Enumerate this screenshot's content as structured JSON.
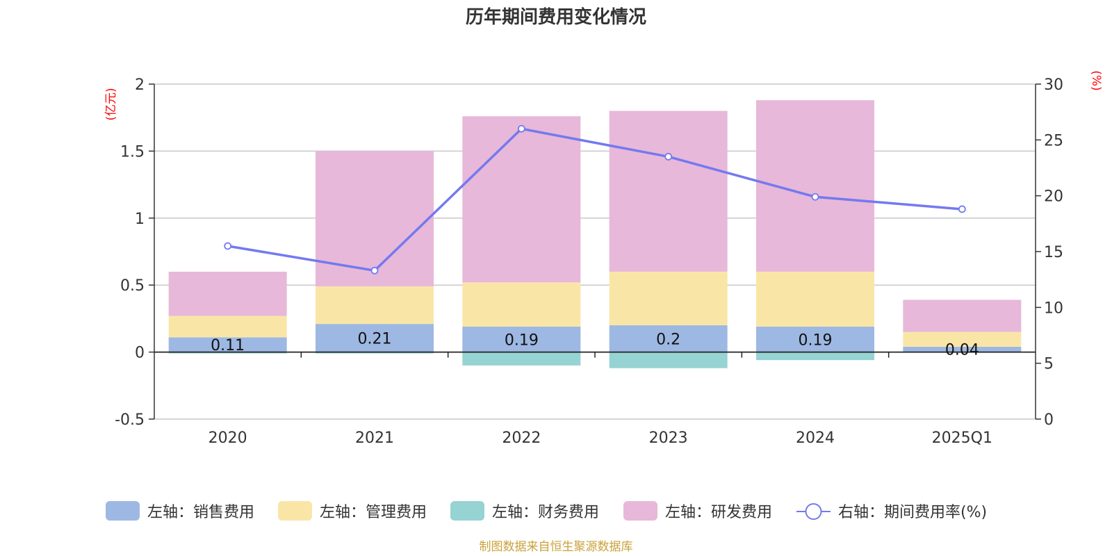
{
  "chart_data": {
    "type": "bar",
    "title": "历年期间费用变化情况",
    "categories": [
      "2020",
      "2021",
      "2022",
      "2023",
      "2024",
      "2025Q1"
    ],
    "stacked": true,
    "left_axis": {
      "unit": "(亿元)",
      "ylim": [
        -0.5,
        2
      ],
      "ticks": [
        -0.5,
        0,
        0.5,
        1,
        1.5,
        2
      ],
      "tick_labels": [
        "-0.5",
        "0",
        "0.5",
        "1",
        "1.5",
        "2"
      ]
    },
    "right_axis": {
      "unit": "(%)",
      "ylim": [
        0,
        30
      ],
      "ticks": [
        0,
        5,
        10,
        15,
        20,
        25,
        30
      ],
      "tick_labels": [
        "0",
        "5",
        "10",
        "15",
        "20",
        "25",
        "30"
      ]
    },
    "series": [
      {
        "name": "左轴：销售费用",
        "type": "bar",
        "axis": "left",
        "color": "#9db8e2",
        "values": [
          0.11,
          0.21,
          0.19,
          0.2,
          0.19,
          0.04
        ],
        "labels": [
          "0.11",
          "0.21",
          "0.19",
          "0.2",
          "0.19",
          "0.04"
        ]
      },
      {
        "name": "左轴：管理费用",
        "type": "bar",
        "axis": "left",
        "color": "#f9e6a7",
        "values": [
          0.16,
          0.28,
          0.33,
          0.4,
          0.41,
          0.11
        ]
      },
      {
        "name": "左轴：财务费用",
        "type": "bar",
        "axis": "left",
        "color": "#96d3d3",
        "values": [
          -0.01,
          -0.01,
          -0.1,
          -0.12,
          -0.06,
          0.0
        ]
      },
      {
        "name": "左轴：研发费用",
        "type": "bar",
        "axis": "left",
        "color": "#e7b8d9",
        "values": [
          0.33,
          1.01,
          1.24,
          1.2,
          1.28,
          0.24
        ]
      },
      {
        "name": "右轴：期间费用率(%)",
        "type": "line",
        "axis": "right",
        "color": "#7479ef",
        "values": [
          15.5,
          13.3,
          26.0,
          23.5,
          19.9,
          18.8
        ]
      }
    ],
    "legend_position": "bottom",
    "grid": true,
    "source": "制图数据来自恒生聚源数据库"
  }
}
